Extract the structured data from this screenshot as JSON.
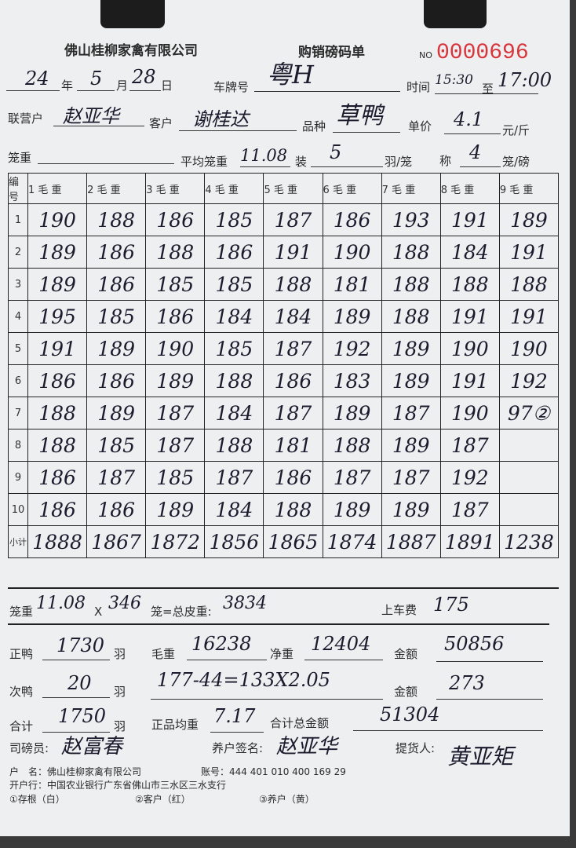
{
  "header": {
    "company": "佛山桂柳家禽有限公司",
    "form_title": "购销磅码单",
    "no_label": "NO",
    "serial": "0000696"
  },
  "date": {
    "year": "24",
    "year_label": "年",
    "month": "5",
    "month_label": "月",
    "day": "28",
    "day_label": "日"
  },
  "plate": {
    "label": "车牌号",
    "value": "粤H"
  },
  "time": {
    "label": "时间",
    "start": "15:30",
    "to": "至",
    "end": "17:00"
  },
  "partner": {
    "label": "联营户",
    "value": "赵亚华"
  },
  "customer": {
    "label": "客户",
    "value": "谢桂达"
  },
  "breed": {
    "label": "品种",
    "value": "草鸭"
  },
  "price": {
    "label": "单价",
    "value": "4.1",
    "unit": "元/斤"
  },
  "cage": {
    "label": "笼重",
    "avg_label": "平均笼重",
    "avg": "11.08",
    "load_label": "装",
    "load": "5",
    "load_unit": "羽/笼",
    "weigh_label": "称",
    "weigh": "4",
    "weigh_unit": "笼/磅"
  },
  "table": {
    "id_header": "编号",
    "columns": [
      "1 毛 重",
      "2 毛 重",
      "3 毛 重",
      "4 毛 重",
      "5 毛 重",
      "6 毛 重",
      "7 毛 重",
      "8 毛 重",
      "9 毛 重"
    ],
    "rows": [
      {
        "id": "1",
        "values": [
          "190",
          "188",
          "186",
          "185",
          "187",
          "186",
          "193",
          "191",
          "189"
        ]
      },
      {
        "id": "2",
        "values": [
          "189",
          "186",
          "188",
          "186",
          "191",
          "190",
          "188",
          "184",
          "191"
        ]
      },
      {
        "id": "3",
        "values": [
          "189",
          "186",
          "185",
          "185",
          "188",
          "181",
          "188",
          "188",
          "188"
        ]
      },
      {
        "id": "4",
        "values": [
          "195",
          "185",
          "186",
          "184",
          "184",
          "189",
          "188",
          "191",
          "191"
        ]
      },
      {
        "id": "5",
        "values": [
          "191",
          "189",
          "190",
          "185",
          "187",
          "192",
          "189",
          "190",
          "190"
        ]
      },
      {
        "id": "6",
        "values": [
          "186",
          "186",
          "189",
          "188",
          "186",
          "183",
          "189",
          "191",
          "192"
        ]
      },
      {
        "id": "7",
        "values": [
          "188",
          "189",
          "187",
          "184",
          "187",
          "189",
          "187",
          "190",
          "97②"
        ]
      },
      {
        "id": "8",
        "values": [
          "188",
          "185",
          "187",
          "188",
          "181",
          "188",
          "189",
          "187",
          ""
        ]
      },
      {
        "id": "9",
        "values": [
          "186",
          "187",
          "185",
          "187",
          "186",
          "187",
          "187",
          "192",
          ""
        ]
      },
      {
        "id": "10",
        "values": [
          "186",
          "186",
          "189",
          "184",
          "188",
          "189",
          "189",
          "187",
          ""
        ]
      }
    ],
    "subtotal_label": "小计",
    "subtotals": [
      "1888",
      "1867",
      "1872",
      "1856",
      "1865",
      "1874",
      "1887",
      "1891",
      "1238"
    ]
  },
  "summary": {
    "cage_label": "笼重",
    "cage_weight": "11.08",
    "x": "X",
    "cage_count": "346",
    "tare_label": "笼=总皮重:",
    "tare": "3834",
    "loading_fee_label": "上车费",
    "loading_fee": "175",
    "prime_label": "正鸭",
    "prime_count": "1730",
    "unit_bird": "羽",
    "gross_label": "毛重",
    "gross": "16238",
    "net_label": "净重",
    "net": "12404",
    "amount_label": "金额",
    "amount1": "50856",
    "second_label": "次鸭",
    "second_count": "20",
    "second_calc": "177-44=133X2.05",
    "amount2": "273",
    "total_label": "合计",
    "total_count": "1750",
    "avg_label": "正品均重",
    "avg": "7.17",
    "grand_label": "合计总金额",
    "grand": "51304",
    "weigher_label": "司磅员:",
    "weigher": "赵富春",
    "farmer_label": "养户签名:",
    "farmer": "赵亚华",
    "pickup_label": "提货人:",
    "pickup": "黄亚矩"
  },
  "footer": {
    "account_name": "户　名：佛山桂柳家禽有限公司",
    "account_no": "账号：444 401 010 400 169 29",
    "bank": "开户行：中国农业银行广东省佛山市三水区三水支行",
    "copies": [
      "①存根（白）",
      "②客户（红）",
      "③养户（黄）"
    ]
  }
}
